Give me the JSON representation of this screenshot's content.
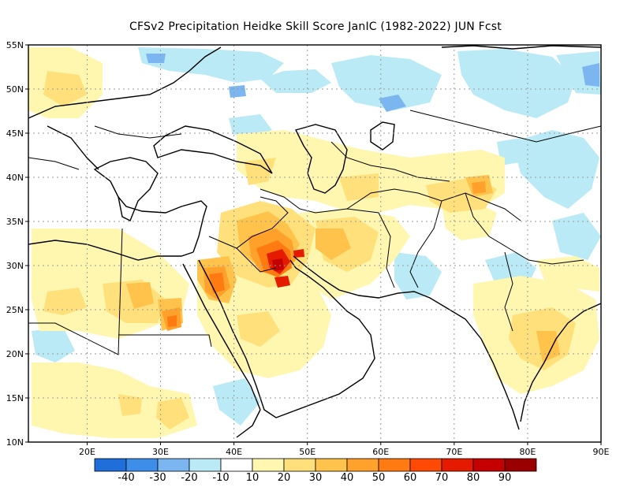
{
  "title": "CFSv2  Precipitation Heidke Skill Score JanIC (1982-2022) JUN Fcst",
  "map": {
    "lon_range": [
      12,
      90
    ],
    "lat_range": [
      10,
      55
    ],
    "lon_ticks": [
      "20E",
      "30E",
      "40E",
      "50E",
      "60E",
      "70E",
      "80E",
      "90E"
    ],
    "lat_ticks": [
      "55N",
      "50N",
      "45N",
      "40N",
      "35N",
      "30N",
      "25N",
      "20N",
      "15N",
      "10N"
    ],
    "grid": "dotted"
  },
  "colorbar": {
    "colors": [
      "#1f6fdb",
      "#3c8ee8",
      "#7bb6f0",
      "#b9eaf5",
      "#ffffff",
      "#fff6b0",
      "#ffe07a",
      "#ffc24a",
      "#ffa12b",
      "#ff7a10",
      "#ff4a05",
      "#e51b00",
      "#c40000",
      "#9b0000"
    ],
    "labels": [
      "-40",
      "-30",
      "-20",
      "-10",
      "10",
      "20",
      "30",
      "40",
      "50",
      "60",
      "70",
      "80",
      "90"
    ]
  }
}
